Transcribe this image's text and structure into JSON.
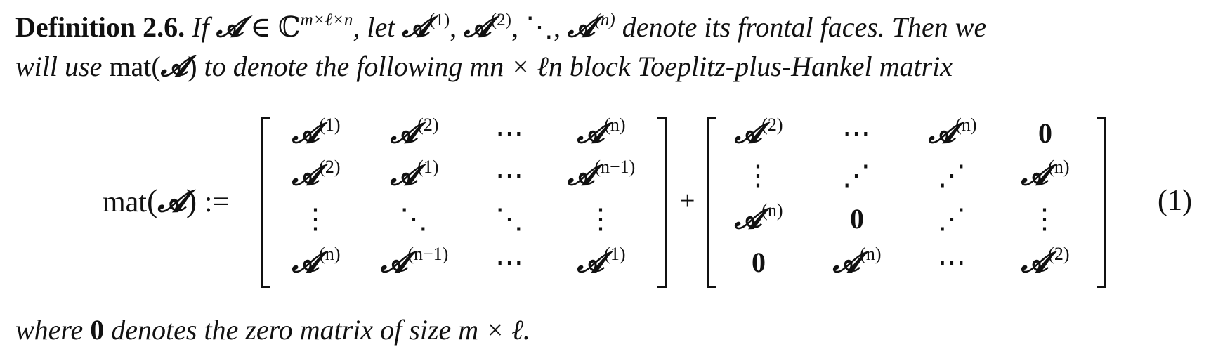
{
  "definition": {
    "label": "Definition 2.6.",
    "line1": {
      "t1": "If",
      "sym_A": "𝓐",
      "in": "∈",
      "field": "ℂ",
      "field_sup": "m×ℓ×n",
      "t2": ", let",
      "face1_sup": "(1)",
      "face2_sup": "(2)",
      "ddots": "⋱",
      "facen_sup": "(n)",
      "t3": "denote its frontal faces. Then we"
    },
    "line2": {
      "t1": "will use",
      "mat": "mat",
      "t2": "to denote the following",
      "dims": "mn × ℓn",
      "t3": "block Toeplitz-plus-Hankel matrix"
    },
    "line3": {
      "t1": "where",
      "zero": "0",
      "t2": "denotes the zero matrix of size",
      "size": "m × ℓ",
      "end": "."
    }
  },
  "equation": {
    "lhs_mat": "mat",
    "lhs_A": "𝓐",
    "assign": ":=",
    "plus": "+",
    "number": "(1)",
    "toeplitz": [
      [
        "(1)",
        "(2)",
        "⋯",
        "(n)"
      ],
      [
        "(2)",
        "(1)",
        "⋯",
        "(n−1)"
      ],
      [
        "⋮",
        "⋱",
        "⋱",
        "⋮"
      ],
      [
        "(n)",
        "(n−1)",
        "⋯",
        "(1)"
      ]
    ],
    "hankel": [
      [
        "(2)",
        "⋯",
        "(n)",
        "0"
      ],
      [
        "⋮",
        "⋰",
        "⋰",
        "(n)"
      ],
      [
        "(n)",
        "0",
        "⋰",
        "⋮"
      ],
      [
        "0",
        "(n)",
        "⋯",
        "(2)"
      ]
    ]
  }
}
